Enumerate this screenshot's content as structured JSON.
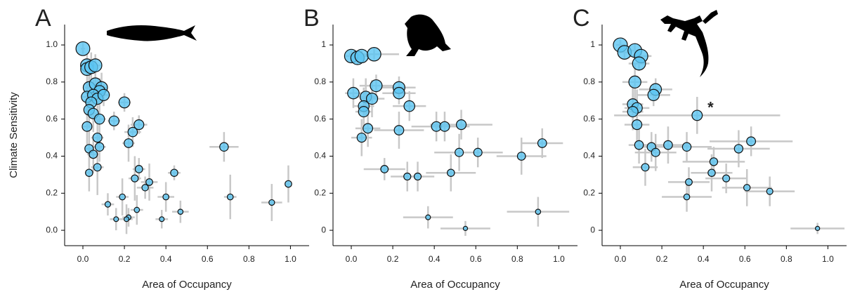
{
  "chart_data": [
    {
      "type": "scatter",
      "title": "A",
      "xlabel": "Area of Occupancy",
      "ylabel": "Climate Sensitivity",
      "color": "#5cc6f2",
      "error_color": "#c8c8c8",
      "x": [
        0.0,
        0.02,
        0.02,
        0.04,
        0.06,
        0.03,
        0.06,
        0.09,
        0.08,
        0.02,
        0.05,
        0.07,
        0.04,
        0.1,
        0.03,
        0.05,
        0.2,
        0.08,
        0.02,
        0.15,
        0.27,
        0.24,
        0.07,
        0.22,
        0.08,
        0.03,
        0.05,
        0.07,
        0.03,
        0.68,
        0.44,
        0.27,
        0.25,
        0.32,
        0.3,
        0.19,
        0.4,
        0.71,
        0.99,
        0.91,
        0.12,
        0.26,
        0.47,
        0.22,
        0.21,
        0.16,
        0.38
      ],
      "values": [
        0.98,
        0.89,
        0.87,
        0.88,
        0.89,
        0.77,
        0.79,
        0.77,
        0.75,
        0.72,
        0.73,
        0.71,
        0.69,
        0.73,
        0.65,
        0.63,
        0.69,
        0.6,
        0.56,
        0.59,
        0.57,
        0.53,
        0.5,
        0.47,
        0.45,
        0.44,
        0.41,
        0.34,
        0.31,
        0.45,
        0.31,
        0.33,
        0.28,
        0.26,
        0.23,
        0.18,
        0.18,
        0.18,
        0.25,
        0.15,
        0.14,
        0.11,
        0.1,
        0.07,
        0.06,
        0.06,
        0.06
      ],
      "xerr": [
        0.01,
        0.02,
        0.02,
        0.02,
        0.03,
        0.02,
        0.03,
        0.03,
        0.03,
        0.02,
        0.03,
        0.03,
        0.02,
        0.03,
        0.02,
        0.03,
        0.03,
        0.03,
        0.02,
        0.03,
        0.04,
        0.04,
        0.03,
        0.03,
        0.03,
        0.02,
        0.03,
        0.03,
        0.02,
        0.07,
        0.03,
        0.03,
        0.03,
        0.04,
        0.04,
        0.03,
        0.04,
        0.03,
        0.01,
        0.05,
        0.03,
        0.03,
        0.04,
        0.03,
        0.03,
        0.03,
        0.03
      ],
      "yerr": [
        0.03,
        0.06,
        0.05,
        0.08,
        0.06,
        0.08,
        0.1,
        0.08,
        0.07,
        0.1,
        0.08,
        0.1,
        0.08,
        0.06,
        0.1,
        0.1,
        0.05,
        0.08,
        0.1,
        0.05,
        0.05,
        0.08,
        0.1,
        0.1,
        0.08,
        0.1,
        0.1,
        0.15,
        0.1,
        0.08,
        0.04,
        0.06,
        0.12,
        0.1,
        0.06,
        0.1,
        0.08,
        0.12,
        0.1,
        0.1,
        0.06,
        0.08,
        0.06,
        0.05,
        0.08,
        0.06,
        0.05
      ],
      "xlim": [
        -0.088,
        1.09
      ],
      "ylim": [
        -0.083,
        1.11
      ],
      "xticks": [
        {
          "value": 0,
          "label": "0.0"
        },
        {
          "value": 0.2,
          "label": "0.2"
        },
        {
          "value": 0.4,
          "label": "0.4"
        },
        {
          "value": 0.6,
          "label": "0.6"
        },
        {
          "value": 0.8,
          "label": "0.8"
        },
        {
          "value": 1,
          "label": "1.0"
        }
      ],
      "yticks": [
        {
          "value": 0,
          "label": "0.0"
        },
        {
          "value": 0.2,
          "label": "0.2"
        },
        {
          "value": 0.4,
          "label": "0.4"
        },
        {
          "value": 0.6,
          "label": "0.6"
        },
        {
          "value": 0.8,
          "label": "0.8"
        },
        {
          "value": 1,
          "label": "1.0"
        }
      ]
    },
    {
      "type": "scatter",
      "title": "B",
      "xlabel": "Area of Occupancy",
      "color": "#5cc6f2",
      "error_color": "#c8c8c8",
      "x": [
        0.0,
        0.03,
        0.05,
        0.11,
        0.01,
        0.12,
        0.23,
        0.23,
        0.07,
        0.1,
        0.06,
        0.06,
        0.28,
        0.08,
        0.05,
        0.23,
        0.41,
        0.45,
        0.53,
        0.52,
        0.61,
        0.82,
        0.92,
        0.16,
        0.27,
        0.32,
        0.48,
        0.37,
        0.55,
        0.9
      ],
      "values": [
        0.94,
        0.93,
        0.94,
        0.95,
        0.74,
        0.78,
        0.77,
        0.74,
        0.72,
        0.71,
        0.67,
        0.64,
        0.67,
        0.55,
        0.5,
        0.54,
        0.56,
        0.56,
        0.57,
        0.42,
        0.42,
        0.4,
        0.47,
        0.33,
        0.29,
        0.29,
        0.31,
        0.07,
        0.01,
        0.1
      ],
      "xerr": [
        0.03,
        0.03,
        0.04,
        0.12,
        0.04,
        0.08,
        0.08,
        0.08,
        0.06,
        0.06,
        0.05,
        0.04,
        0.08,
        0.06,
        0.05,
        0.12,
        0.12,
        0.12,
        0.15,
        0.12,
        0.12,
        0.12,
        0.1,
        0.1,
        0.08,
        0.08,
        0.12,
        0.12,
        0.12,
        0.15
      ],
      "yerr": [
        0.03,
        0.03,
        0.03,
        0.03,
        0.08,
        0.06,
        0.06,
        0.06,
        0.1,
        0.1,
        0.1,
        0.08,
        0.08,
        0.1,
        0.1,
        0.1,
        0.08,
        0.08,
        0.08,
        0.1,
        0.08,
        0.1,
        0.08,
        0.06,
        0.08,
        0.08,
        0.1,
        0.06,
        0.04,
        0.08
      ],
      "xlim": [
        -0.088,
        1.09
      ],
      "ylim": [
        -0.083,
        1.11
      ],
      "xticks": [
        {
          "value": 0,
          "label": "0.0"
        },
        {
          "value": 0.2,
          "label": "0.2"
        },
        {
          "value": 0.4,
          "label": "0.4"
        },
        {
          "value": 0.6,
          "label": "0.6"
        },
        {
          "value": 0.8,
          "label": "0.8"
        },
        {
          "value": 1,
          "label": "1.0"
        }
      ],
      "yticks": [
        0,
        0.2,
        0.4,
        0.6,
        0.8,
        1
      ]
    },
    {
      "type": "scatter",
      "title": "C",
      "xlabel": "Area of Occupancy",
      "color": "#5cc6f2",
      "error_color": "#c8c8c8",
      "x": [
        0.0,
        0.02,
        0.07,
        0.1,
        0.09,
        0.07,
        0.17,
        0.16,
        0.06,
        0.08,
        0.06,
        0.37,
        0.08,
        0.09,
        0.15,
        0.17,
        0.23,
        0.12,
        0.32,
        0.57,
        0.63,
        0.45,
        0.44,
        0.51,
        0.33,
        0.61,
        0.72,
        0.32,
        0.95
      ],
      "values": [
        1.0,
        0.96,
        0.97,
        0.94,
        0.9,
        0.8,
        0.76,
        0.73,
        0.68,
        0.66,
        0.64,
        0.62,
        0.57,
        0.46,
        0.45,
        0.42,
        0.46,
        0.34,
        0.45,
        0.44,
        0.48,
        0.37,
        0.31,
        0.28,
        0.26,
        0.23,
        0.21,
        0.18,
        0.01
      ],
      "xerr": [
        0.02,
        0.03,
        0.04,
        0.05,
        0.05,
        0.06,
        0.08,
        0.08,
        0.05,
        0.06,
        0.05,
        0.4,
        0.06,
        0.05,
        0.08,
        0.1,
        0.1,
        0.06,
        0.12,
        0.15,
        0.2,
        0.15,
        0.1,
        0.1,
        0.1,
        0.12,
        0.12,
        0.12,
        0.13
      ],
      "yerr": [
        0.03,
        0.04,
        0.04,
        0.04,
        0.04,
        0.1,
        0.06,
        0.06,
        0.1,
        0.1,
        0.1,
        0.1,
        0.1,
        0.1,
        0.08,
        0.1,
        0.1,
        0.1,
        0.08,
        0.1,
        0.08,
        0.08,
        0.1,
        0.08,
        0.08,
        0.1,
        0.08,
        0.08,
        0.03
      ],
      "annotations": [
        {
          "text": "*",
          "x": 0.42,
          "y": 0.68
        }
      ],
      "xlim": [
        -0.088,
        1.09
      ],
      "ylim": [
        -0.083,
        1.11
      ],
      "xticks": [
        {
          "value": 0,
          "label": "0.0"
        },
        {
          "value": 0.2,
          "label": "0.2"
        },
        {
          "value": 0.4,
          "label": "0.4"
        },
        {
          "value": 0.6,
          "label": "0.6"
        },
        {
          "value": 0.8,
          "label": "0.8"
        },
        {
          "value": 1,
          "label": "1.0"
        }
      ],
      "yticks": [
        0,
        0.2,
        0.4,
        0.6,
        0.8,
        1
      ]
    }
  ]
}
